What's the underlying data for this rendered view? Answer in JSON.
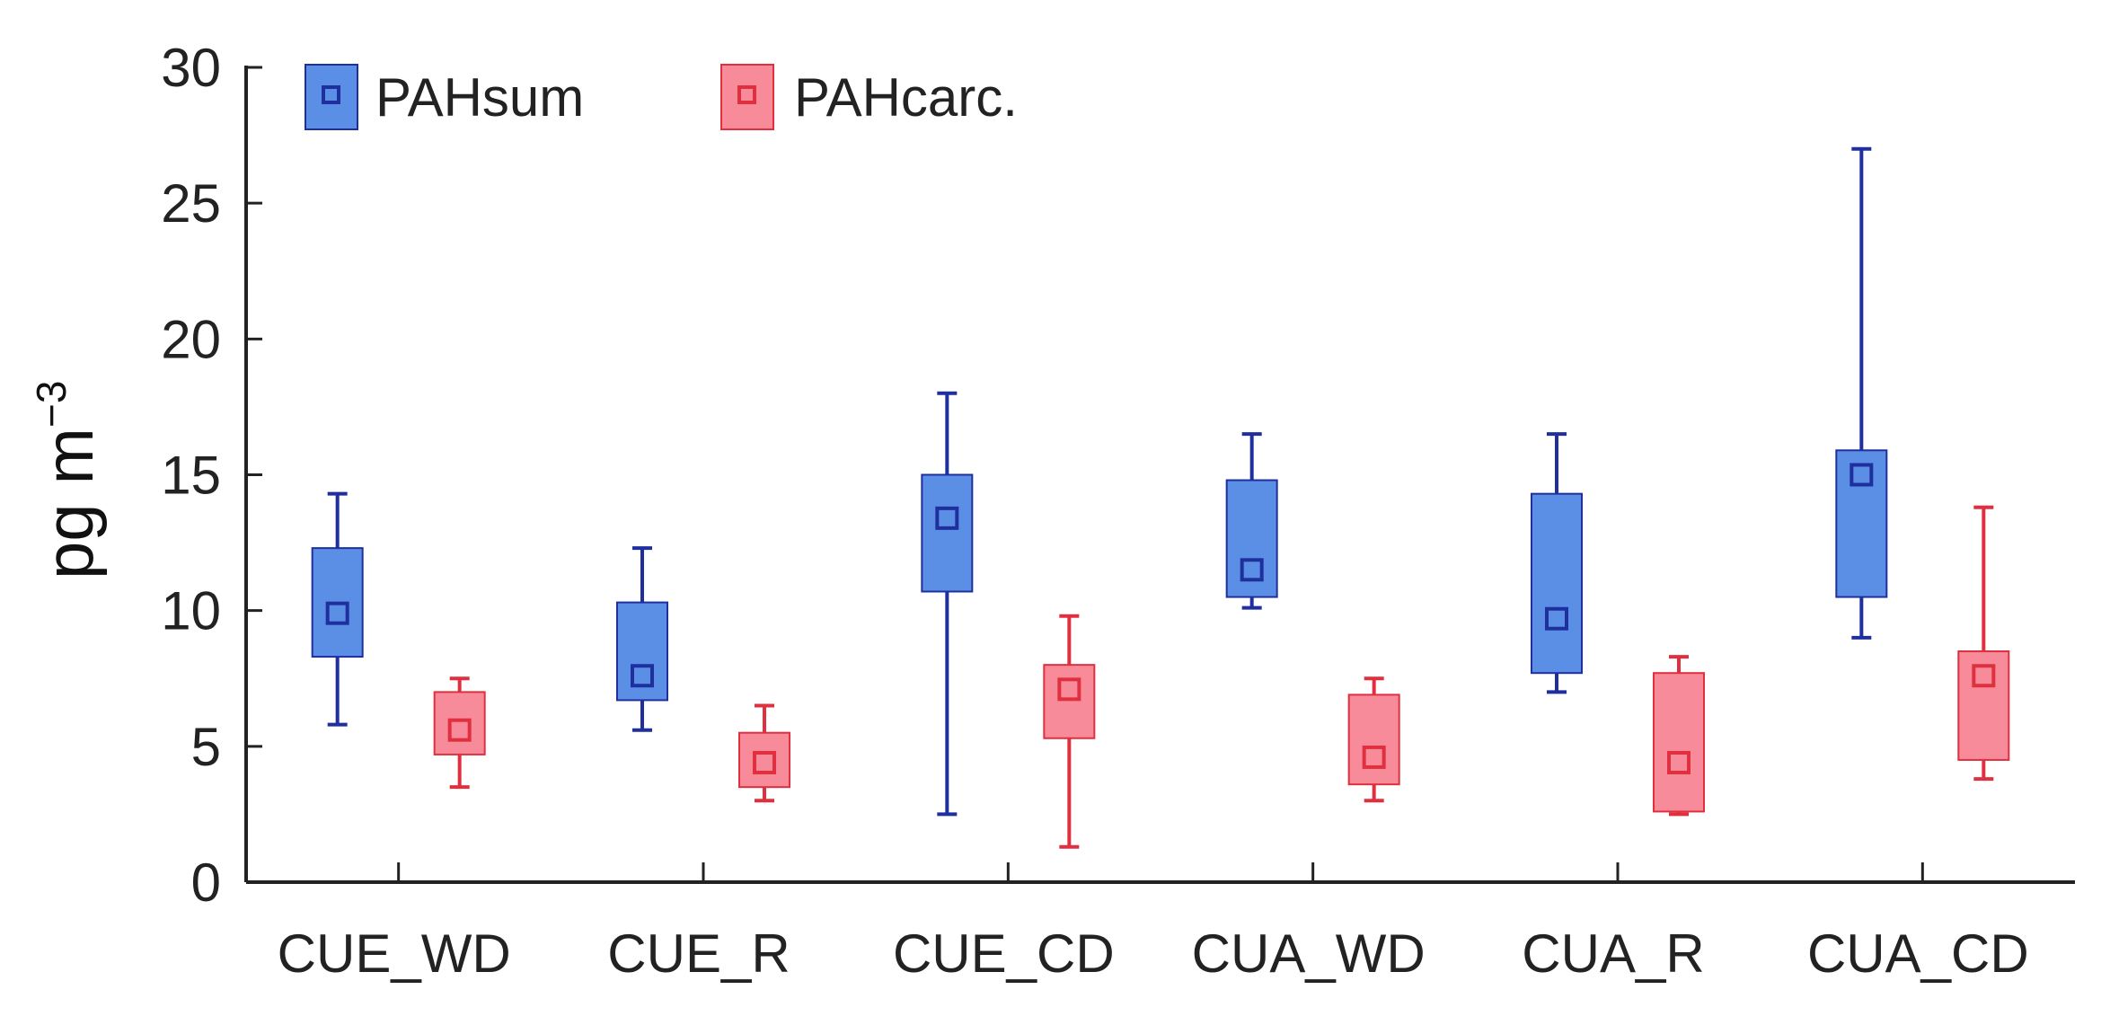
{
  "chart_data": {
    "type": "box",
    "title": "",
    "xlabel": "",
    "ylabel": "pg m",
    "ylabel_superscript": "−3",
    "ylim": [
      0,
      30
    ],
    "yticks": [
      0,
      5,
      10,
      15,
      20,
      25,
      30
    ],
    "ytick_labels": [
      "0",
      "5",
      "10",
      "15",
      "20",
      "25",
      "30"
    ],
    "categories": [
      "CUE_WD",
      "CUE_R",
      "CUE_CD",
      "CUA_WD",
      "CUA_R",
      "CUA_CD"
    ],
    "legend_position": "top-left",
    "series": [
      {
        "name": "PAHsum",
        "fill": "#5b8fe6",
        "stroke": "#1f2f9e",
        "boxes": [
          {
            "min": 5.8,
            "q1": 8.3,
            "mean": 9.9,
            "q3": 12.3,
            "max": 14.3
          },
          {
            "min": 5.6,
            "q1": 6.7,
            "mean": 7.6,
            "q3": 10.3,
            "max": 12.3
          },
          {
            "min": 2.5,
            "q1": 10.7,
            "mean": 13.4,
            "q3": 15.0,
            "max": 18.0
          },
          {
            "min": 10.1,
            "q1": 10.5,
            "mean": 11.5,
            "q3": 14.8,
            "max": 16.5
          },
          {
            "min": 7.0,
            "q1": 7.7,
            "mean": 9.7,
            "q3": 14.3,
            "max": 16.5
          },
          {
            "min": 9.0,
            "q1": 10.5,
            "mean": 15.0,
            "q3": 15.9,
            "max": 27.0
          }
        ]
      },
      {
        "name": "PAHcarc.",
        "fill": "#f78b9a",
        "stroke": "#e0303f",
        "boxes": [
          {
            "min": 3.5,
            "q1": 4.7,
            "mean": 5.6,
            "q3": 7.0,
            "max": 7.5
          },
          {
            "min": 3.0,
            "q1": 3.5,
            "mean": 4.4,
            "q3": 5.5,
            "max": 6.5
          },
          {
            "min": 1.3,
            "q1": 5.3,
            "mean": 7.1,
            "q3": 8.0,
            "max": 9.8
          },
          {
            "min": 3.0,
            "q1": 3.6,
            "mean": 4.6,
            "q3": 6.9,
            "max": 7.5
          },
          {
            "min": 2.5,
            "q1": 2.6,
            "mean": 4.4,
            "q3": 7.7,
            "max": 8.3
          },
          {
            "min": 3.8,
            "q1": 4.5,
            "mean": 7.6,
            "q3": 8.5,
            "max": 13.8
          }
        ]
      }
    ]
  }
}
